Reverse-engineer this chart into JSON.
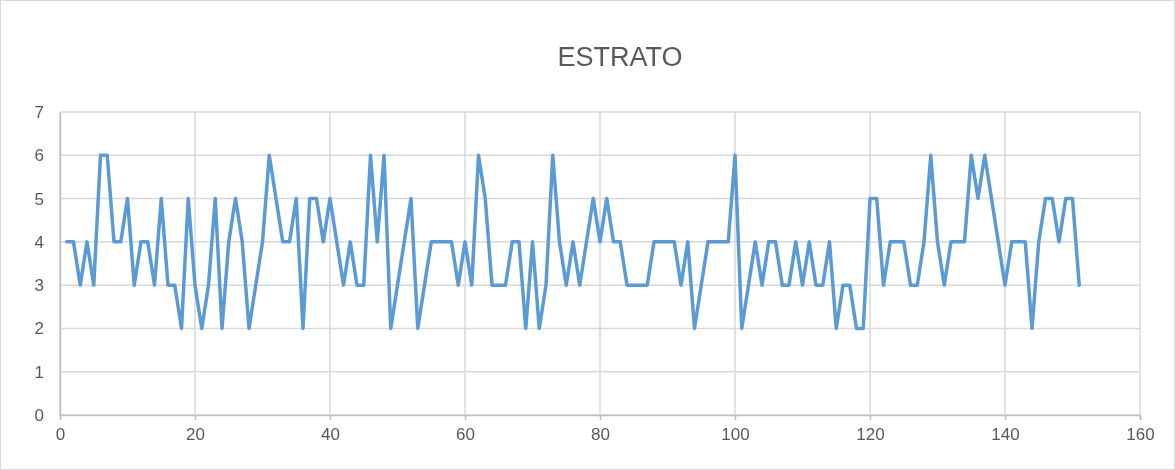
{
  "chart_data": {
    "type": "line",
    "title": "ESTRATO",
    "x": [
      1,
      2,
      3,
      4,
      5,
      6,
      7,
      8,
      9,
      10,
      11,
      12,
      13,
      14,
      15,
      16,
      17,
      18,
      19,
      20,
      21,
      22,
      23,
      24,
      25,
      26,
      27,
      28,
      29,
      30,
      31,
      32,
      33,
      34,
      35,
      36,
      37,
      38,
      39,
      40,
      41,
      42,
      43,
      44,
      45,
      46,
      47,
      48,
      49,
      50,
      51,
      52,
      53,
      54,
      55,
      56,
      57,
      58,
      59,
      60,
      61,
      62,
      63,
      64,
      65,
      66,
      67,
      68,
      69,
      70,
      71,
      72,
      73,
      74,
      75,
      76,
      77,
      78,
      79,
      80,
      81,
      82,
      83,
      84,
      85,
      86,
      87,
      88,
      89,
      90,
      91,
      92,
      93,
      94,
      95,
      96,
      97,
      98,
      99,
      100,
      101,
      102,
      103,
      104,
      105,
      106,
      107,
      108,
      109,
      110,
      111,
      112,
      113,
      114,
      115,
      116,
      117,
      118,
      119,
      120,
      121,
      122,
      123,
      124,
      125,
      126,
      127,
      128,
      129,
      130,
      131,
      132,
      133,
      134,
      135,
      136,
      137,
      138,
      139,
      140,
      141,
      142,
      143,
      144,
      145,
      146,
      147,
      148,
      149,
      150,
      151
    ],
    "series": [
      {
        "color": "#5b9bd5",
        "values": [
          4,
          4,
          3,
          4,
          3,
          6,
          6,
          4,
          4,
          5,
          3,
          4,
          4,
          3,
          5,
          3,
          3,
          2,
          5,
          3,
          2,
          3,
          5,
          2,
          4,
          5,
          4,
          2,
          3,
          4,
          6,
          5,
          4,
          4,
          5,
          2,
          5,
          5,
          4,
          5,
          4,
          3,
          4,
          3,
          3,
          6,
          4,
          6,
          2,
          3,
          4,
          5,
          2,
          3,
          4,
          4,
          4,
          4,
          3,
          4,
          3,
          6,
          5,
          3,
          3,
          3,
          4,
          4,
          2,
          4,
          2,
          3,
          6,
          4,
          3,
          4,
          3,
          4,
          5,
          4,
          5,
          4,
          4,
          3,
          3,
          3,
          3,
          4,
          4,
          4,
          4,
          3,
          4,
          2,
          3,
          4,
          4,
          4,
          4,
          6,
          2,
          3,
          4,
          3,
          4,
          4,
          3,
          3,
          4,
          3,
          4,
          3,
          3,
          4,
          2,
          3,
          3,
          2,
          2,
          5,
          5,
          3,
          4,
          4,
          4,
          3,
          3,
          4,
          6,
          4,
          3,
          4,
          4,
          4,
          6,
          5,
          6,
          5,
          4,
          3,
          4,
          4,
          4,
          2,
          4,
          5,
          5,
          4,
          5,
          5,
          3
        ]
      }
    ],
    "xlim": [
      0,
      160
    ],
    "xticks": [
      0,
      20,
      40,
      60,
      80,
      100,
      120,
      140,
      160
    ],
    "ylim": [
      0,
      7
    ],
    "yticks": [
      0,
      1,
      2,
      3,
      4,
      5,
      6,
      7
    ],
    "grid": true,
    "marker": "none",
    "line_style": "solid"
  }
}
